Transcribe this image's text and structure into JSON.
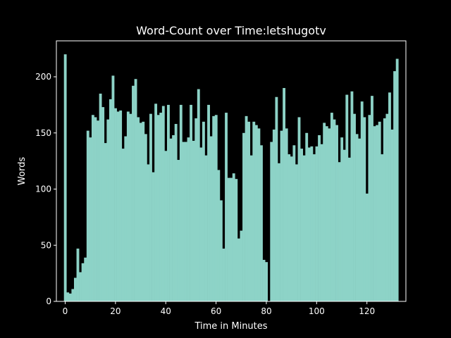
{
  "chart_data": {
    "type": "bar",
    "title": "Word-Count over Time:letshugotv",
    "xlabel": "Time in Minutes",
    "ylabel": "Words",
    "xlim": [
      -3.5,
      135.5
    ],
    "ylim": [
      0,
      232
    ],
    "xticks": [
      0,
      20,
      40,
      60,
      80,
      100,
      120
    ],
    "yticks": [
      0,
      50,
      100,
      150,
      200
    ],
    "grid": false,
    "bar_color": "#8dd3c7",
    "background": "#000000",
    "foreground": "#ffffff",
    "x": [
      0,
      1,
      2,
      3,
      4,
      5,
      6,
      7,
      8,
      9,
      10,
      11,
      12,
      13,
      14,
      15,
      16,
      17,
      18,
      19,
      20,
      21,
      22,
      23,
      24,
      25,
      26,
      27,
      28,
      29,
      30,
      31,
      32,
      33,
      34,
      35,
      36,
      37,
      38,
      39,
      40,
      41,
      42,
      43,
      44,
      45,
      46,
      47,
      48,
      49,
      50,
      51,
      52,
      53,
      54,
      55,
      56,
      57,
      58,
      59,
      60,
      61,
      62,
      63,
      64,
      65,
      66,
      67,
      68,
      69,
      70,
      71,
      72,
      73,
      74,
      75,
      76,
      77,
      78,
      79,
      80,
      81,
      82,
      83,
      84,
      85,
      86,
      87,
      88,
      89,
      90,
      91,
      92,
      93,
      94,
      95,
      96,
      97,
      98,
      99,
      100,
      101,
      102,
      103,
      104,
      105,
      106,
      107,
      108,
      109,
      110,
      111,
      112,
      113,
      114,
      115,
      116,
      117,
      118,
      119,
      120,
      121,
      122,
      123,
      124,
      125,
      126,
      127,
      128,
      129,
      130,
      131,
      132
    ],
    "values": [
      220,
      8,
      7,
      11,
      21,
      47,
      26,
      34,
      39,
      152,
      146,
      166,
      164,
      161,
      185,
      173,
      141,
      162,
      180,
      201,
      172,
      169,
      170,
      136,
      147,
      169,
      167,
      192,
      198,
      164,
      159,
      160,
      149,
      122,
      167,
      115,
      176,
      166,
      168,
      174,
      134,
      175,
      145,
      148,
      158,
      126,
      175,
      142,
      142,
      146,
      175,
      143,
      163,
      189,
      137,
      160,
      130,
      175,
      147,
      165,
      166,
      117,
      90,
      47,
      168,
      110,
      110,
      114,
      109,
      56,
      63,
      150,
      165,
      160,
      130,
      160,
      157,
      154,
      139,
      37,
      35,
      0,
      142,
      153,
      182,
      123,
      152,
      190,
      154,
      131,
      129,
      139,
      122,
      164,
      136,
      130,
      150,
      137,
      138,
      131,
      138,
      148,
      140,
      159,
      156,
      154,
      168,
      162,
      157,
      124,
      146,
      135,
      184,
      128,
      187,
      167,
      149,
      145,
      178,
      164,
      96,
      166,
      183,
      156,
      157,
      160,
      131,
      163,
      167,
      186,
      153,
      205,
      216
    ]
  }
}
